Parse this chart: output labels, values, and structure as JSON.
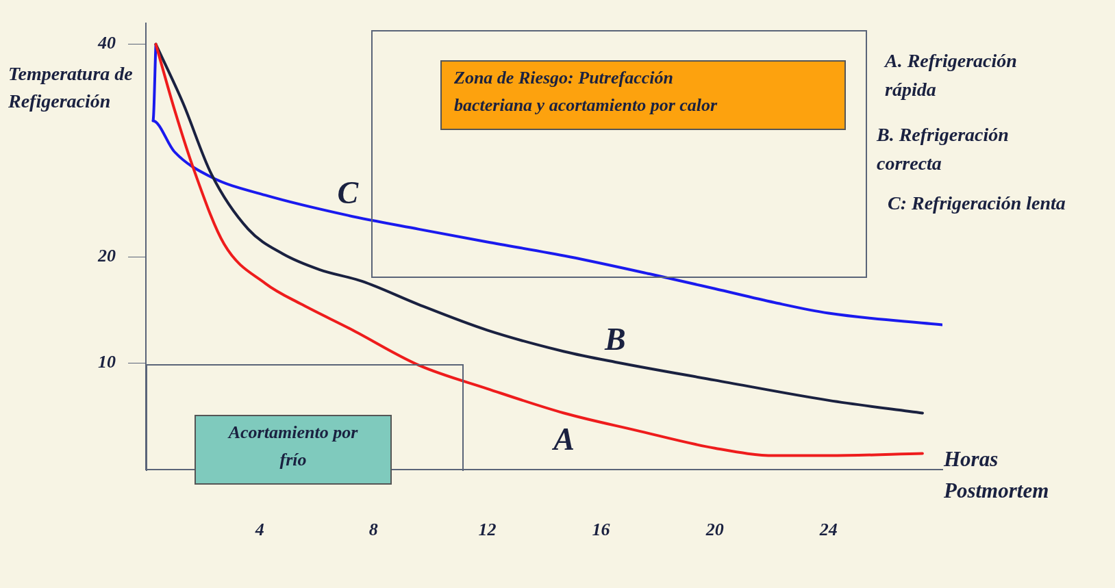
{
  "chart_data": {
    "type": "line",
    "xlabel": "Horas Postmortem",
    "ylabel": "Temperatura de Refigeración",
    "xlim": [
      0,
      28
    ],
    "ylim": [
      0,
      42
    ],
    "xticks": [
      4,
      8,
      12,
      16,
      20,
      24
    ],
    "yticks": [
      10,
      20,
      40
    ],
    "grid": false,
    "marker": "none",
    "series": [
      {
        "name": "A",
        "color": "#ee1c1c",
        "x": [
          0.35,
          1.0,
          1.7,
          2.75,
          4.2,
          5.5,
          7.2,
          9.6,
          12,
          14.7,
          17.2,
          20,
          22.1,
          24,
          27.3
        ],
        "values": [
          40,
          33.9,
          28.1,
          21.2,
          17.5,
          15.5,
          13.2,
          9.8,
          7.6,
          5.3,
          3.7,
          2.0,
          1.3,
          1.3,
          1.5
        ]
      },
      {
        "name": "B",
        "color": "#1a2140",
        "x": [
          0.35,
          1.3,
          2.3,
          3.6,
          4.8,
          6.1,
          7.6,
          9.6,
          12,
          14.7,
          16.5,
          20,
          24,
          27.3
        ],
        "values": [
          40,
          34.5,
          27.8,
          22.6,
          20.3,
          18.8,
          17.7,
          15.5,
          13.1,
          11.1,
          10.1,
          8.4,
          6.5,
          5.3
        ]
      },
      {
        "name": "C",
        "color": "#1a1aee",
        "x": [
          0.35,
          0.25,
          1.0,
          2.3,
          4.2,
          7.1,
          9.6,
          12,
          14.9,
          17.7,
          20,
          22.1,
          24,
          28
        ],
        "values": [
          40,
          32.8,
          29.9,
          27.5,
          25.8,
          23.9,
          22.6,
          21.4,
          20,
          18.4,
          17.0,
          15.7,
          14.7,
          13.6
        ]
      }
    ],
    "annotations": [
      "Zona de Riesgo: Putrefacción bacteriana y acortamiento por calor",
      "Acortamiento por frío",
      "A. Refrigeración rápida",
      "B. Refrigeración correcta",
      "C: Refrigeración lenta"
    ]
  }
}
